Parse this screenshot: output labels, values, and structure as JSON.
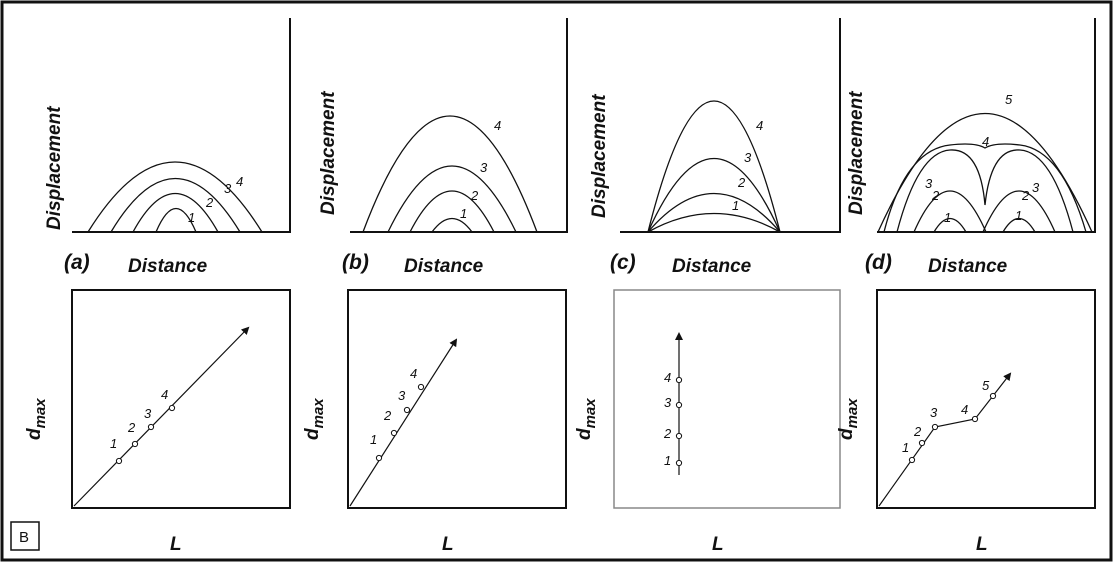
{
  "figure": {
    "badge": "B",
    "top_panels": [
      {
        "id": "a",
        "panel_label": "(a)",
        "xlabel": "Distance",
        "ylabel": "Displacement",
        "curve_labels": [
          "1",
          "2",
          "3",
          "4"
        ]
      },
      {
        "id": "b",
        "panel_label": "(b)",
        "xlabel": "Distance",
        "ylabel": "Displacement",
        "curve_labels": [
          "1",
          "2",
          "3",
          "4"
        ]
      },
      {
        "id": "c",
        "panel_label": "(c)",
        "xlabel": "Distance",
        "ylabel": "Displacement",
        "curve_labels": [
          "1",
          "2",
          "3",
          "4"
        ]
      },
      {
        "id": "d",
        "panel_label": "(d)",
        "xlabel": "Distance",
        "ylabel": "Displacement",
        "curve_labels": [
          "1",
          "2",
          "3",
          "4",
          "5"
        ]
      }
    ],
    "bottom_panels": [
      {
        "id": "a",
        "xlabel": "L",
        "ylabel": "d",
        "ylabel_sub": "max",
        "point_labels": [
          "1",
          "2",
          "3",
          "4"
        ]
      },
      {
        "id": "b",
        "xlabel": "L",
        "ylabel": "d",
        "ylabel_sub": "max",
        "point_labels": [
          "1",
          "2",
          "3",
          "4"
        ]
      },
      {
        "id": "c",
        "xlabel": "L",
        "ylabel": "d",
        "ylabel_sub": "max",
        "point_labels": [
          "1",
          "2",
          "3",
          "4"
        ]
      },
      {
        "id": "d",
        "xlabel": "L",
        "ylabel": "d",
        "ylabel_sub": "max",
        "point_labels": [
          "1",
          "2",
          "3",
          "4",
          "5"
        ]
      }
    ]
  }
}
